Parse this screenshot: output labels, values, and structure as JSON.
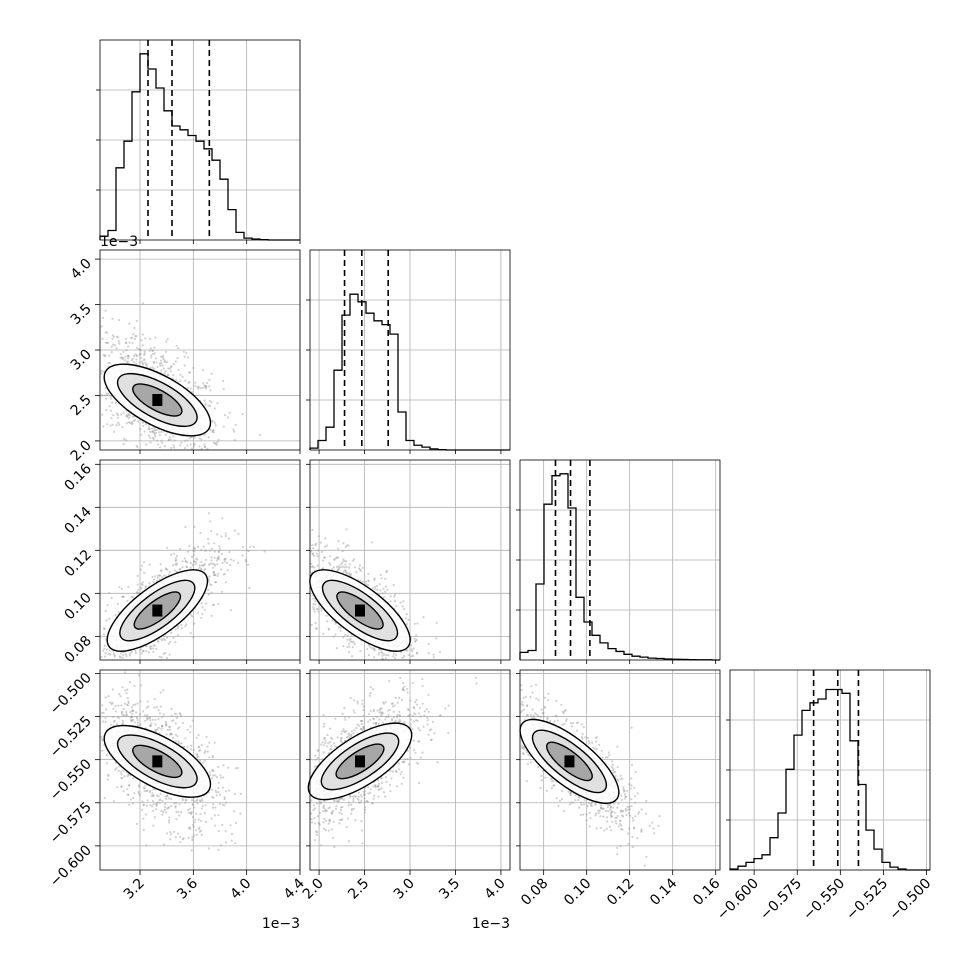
{
  "chart_data": {
    "type": "corner",
    "n_params": 4,
    "params": [
      {
        "range": [
          0.0029,
          0.0044
        ],
        "ticks": [
          0.0032,
          0.0036,
          0.004,
          0.0044
        ],
        "tick_labels": [
          "3.2",
          "3.6",
          "4.0",
          "4.4"
        ],
        "offset_label": "1e−3",
        "quantiles": [
          0.00326,
          0.00344,
          0.00372
        ],
        "hist": [
          0.02,
          0.05,
          0.38,
          0.52,
          0.78,
          0.98,
          0.9,
          0.8,
          0.68,
          0.6,
          0.58,
          0.55,
          0.52,
          0.48,
          0.42,
          0.32,
          0.16,
          0.04,
          0.01,
          0.005,
          0.002,
          0,
          0,
          0,
          0
        ],
        "peak": 0.00333
      },
      {
        "range": [
          0.0019,
          0.0041
        ],
        "ticks": [
          0.002,
          0.0025,
          0.003,
          0.0035,
          0.004
        ],
        "tick_labels": [
          "2.0",
          "2.5",
          "3.0",
          "3.5",
          "4.0"
        ],
        "offset_label": "1e−3",
        "quantiles": [
          0.00228,
          0.00247,
          0.00276
        ],
        "hist": [
          0.01,
          0.05,
          0.12,
          0.42,
          0.71,
          0.82,
          0.78,
          0.72,
          0.68,
          0.66,
          0.61,
          0.2,
          0.05,
          0.025,
          0.015,
          0.006,
          0.002,
          0,
          0,
          0,
          0,
          0,
          0,
          0,
          0
        ],
        "peak": 0.00245
      },
      {
        "range": [
          0.069,
          0.162
        ],
        "ticks": [
          0.08,
          0.1,
          0.12,
          0.14,
          0.16
        ],
        "tick_labels": [
          "0.08",
          "0.10",
          "0.12",
          "0.14",
          "0.16"
        ],
        "offset_label": "",
        "quantiles": [
          0.0855,
          0.0925,
          0.1015
        ],
        "hist": [
          0.04,
          0.05,
          0.4,
          0.82,
          0.97,
          0.98,
          0.8,
          0.33,
          0.2,
          0.13,
          0.09,
          0.06,
          0.045,
          0.03,
          0.02,
          0.015,
          0.01,
          0.008,
          0.005,
          0.004,
          0.003,
          0.002,
          0.001,
          0.001,
          0
        ],
        "peak": 0.092
      },
      {
        "range": [
          -0.614,
          -0.498
        ],
        "ticks": [
          -0.6,
          -0.575,
          -0.55,
          -0.525,
          -0.5
        ],
        "tick_labels": [
          "−0.600",
          "−0.575",
          "−0.550",
          "−0.525",
          "−0.500"
        ],
        "offset_label": "",
        "quantiles": [
          -0.5655,
          -0.5515,
          -0.5395
        ],
        "hist": [
          0.005,
          0.02,
          0.04,
          0.06,
          0.08,
          0.17,
          0.3,
          0.53,
          0.71,
          0.84,
          0.88,
          0.9,
          0.95,
          0.95,
          0.93,
          0.68,
          0.45,
          0.21,
          0.11,
          0.04,
          0.015,
          0.005,
          0,
          0,
          0
        ],
        "peak": -0.551
      }
    ],
    "covariances": [
      {
        "row": 1,
        "col": 0,
        "r": -0.55
      },
      {
        "row": 2,
        "col": 0,
        "r": 0.75
      },
      {
        "row": 2,
        "col": 1,
        "r": -0.75
      },
      {
        "row": 3,
        "col": 0,
        "r": -0.55
      },
      {
        "row": 3,
        "col": 1,
        "r": 0.65
      },
      {
        "row": 3,
        "col": 2,
        "r": -0.8
      }
    ],
    "grid": true,
    "colors": {
      "hist": "#000000",
      "contour": "#000000",
      "points": "#9a9a9a",
      "grid": "#b0b0b0",
      "axes": "#000000"
    }
  }
}
